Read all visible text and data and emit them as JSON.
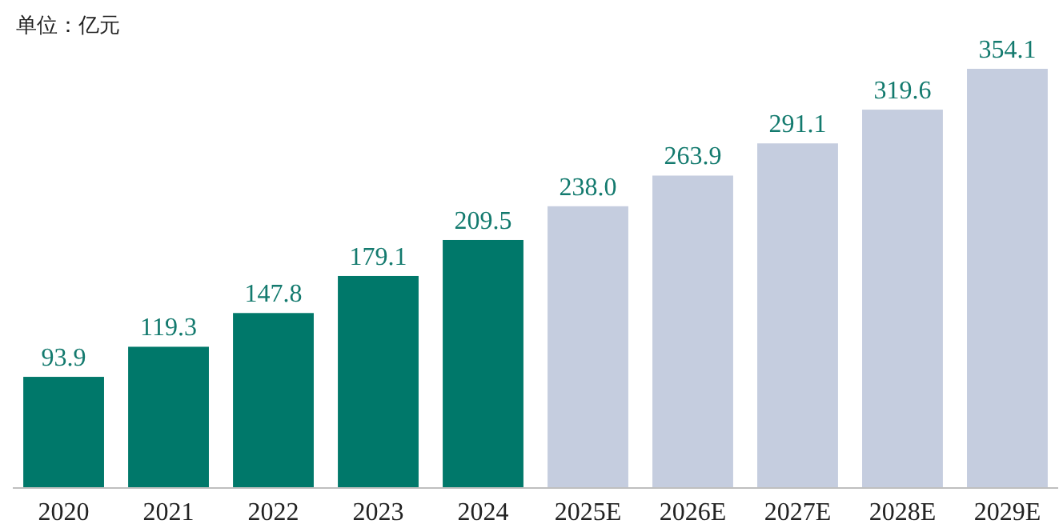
{
  "chart_data": {
    "type": "bar",
    "annotations": [
      "单位：亿元"
    ],
    "categories": [
      "2020",
      "2021",
      "2022",
      "2023",
      "2024",
      "2025E",
      "2026E",
      "2027E",
      "2028E",
      "2029E"
    ],
    "values": [
      93.9,
      119.3,
      147.8,
      179.1,
      209.5,
      238.0,
      263.9,
      291.1,
      319.6,
      354.1
    ],
    "value_labels": [
      "93.9",
      "119.3",
      "147.8",
      "179.1",
      "209.5",
      "238.0",
      "263.9",
      "291.1",
      "319.6",
      "354.1"
    ],
    "colors": [
      "#00786a",
      "#00786a",
      "#00786a",
      "#00786a",
      "#00786a",
      "#c5cddf",
      "#c5cddf",
      "#c5cddf",
      "#c5cddf",
      "#c5cddf"
    ]
  }
}
